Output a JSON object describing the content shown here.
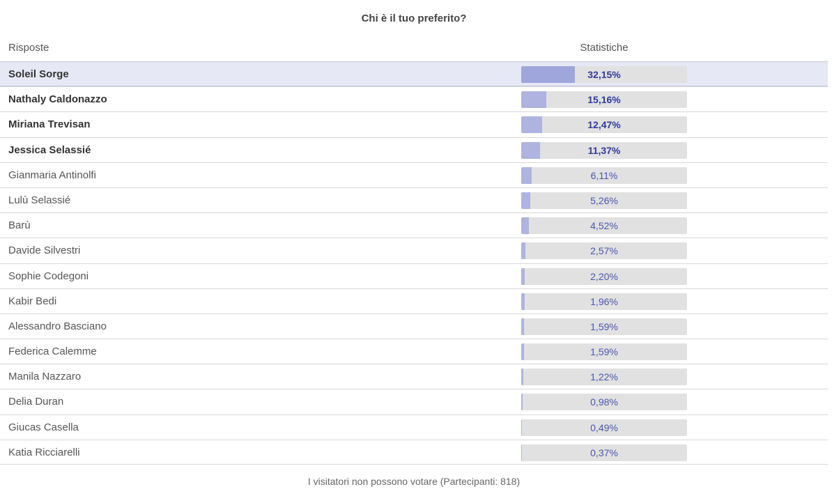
{
  "poll": {
    "title": "Chi è il tuo preferito?",
    "headers": {
      "answers": "Risposte",
      "stats": "Statistiche"
    },
    "options": [
      {
        "label": "Soleil Sorge",
        "percent_text": "32,15%",
        "percent": 32.15,
        "top": true,
        "highlight": true
      },
      {
        "label": "Nathaly Caldonazzo",
        "percent_text": "15,16%",
        "percent": 15.16,
        "top": true
      },
      {
        "label": "Miriana Trevisan",
        "percent_text": "12,47%",
        "percent": 12.47,
        "top": true
      },
      {
        "label": "Jessica Selassié",
        "percent_text": "11,37%",
        "percent": 11.37,
        "top": true
      },
      {
        "label": "Gianmaria Antinolfi",
        "percent_text": "6,11%",
        "percent": 6.11
      },
      {
        "label": "Lulù Selassié",
        "percent_text": "5,26%",
        "percent": 5.26
      },
      {
        "label": "Barù",
        "percent_text": "4,52%",
        "percent": 4.52
      },
      {
        "label": "Davide Silvestri",
        "percent_text": "2,57%",
        "percent": 2.57
      },
      {
        "label": "Sophie Codegoni",
        "percent_text": "2,20%",
        "percent": 2.2
      },
      {
        "label": "Kabir Bedi",
        "percent_text": "1,96%",
        "percent": 1.96
      },
      {
        "label": "Alessandro Basciano",
        "percent_text": "1,59%",
        "percent": 1.59
      },
      {
        "label": "Federica Calemme",
        "percent_text": "1,59%",
        "percent": 1.59
      },
      {
        "label": "Manila Nazzaro",
        "percent_text": "1,22%",
        "percent": 1.22
      },
      {
        "label": "Delia Duran",
        "percent_text": "0,98%",
        "percent": 0.98
      },
      {
        "label": "Giucas Casella",
        "percent_text": "0,49%",
        "percent": 0.49
      },
      {
        "label": "Katia Ricciarelli",
        "percent_text": "0,37%",
        "percent": 0.37
      }
    ],
    "footer": "I visitatori non possono votare (Partecipanti: 818)"
  },
  "colors": {
    "bar_fill": "#aeb3df",
    "bar_fill_leader": "#9fa6dc",
    "bar_track": "#e1e1e1",
    "value_text": "#4a55b0",
    "highlight_row": "#e6e8f5"
  }
}
